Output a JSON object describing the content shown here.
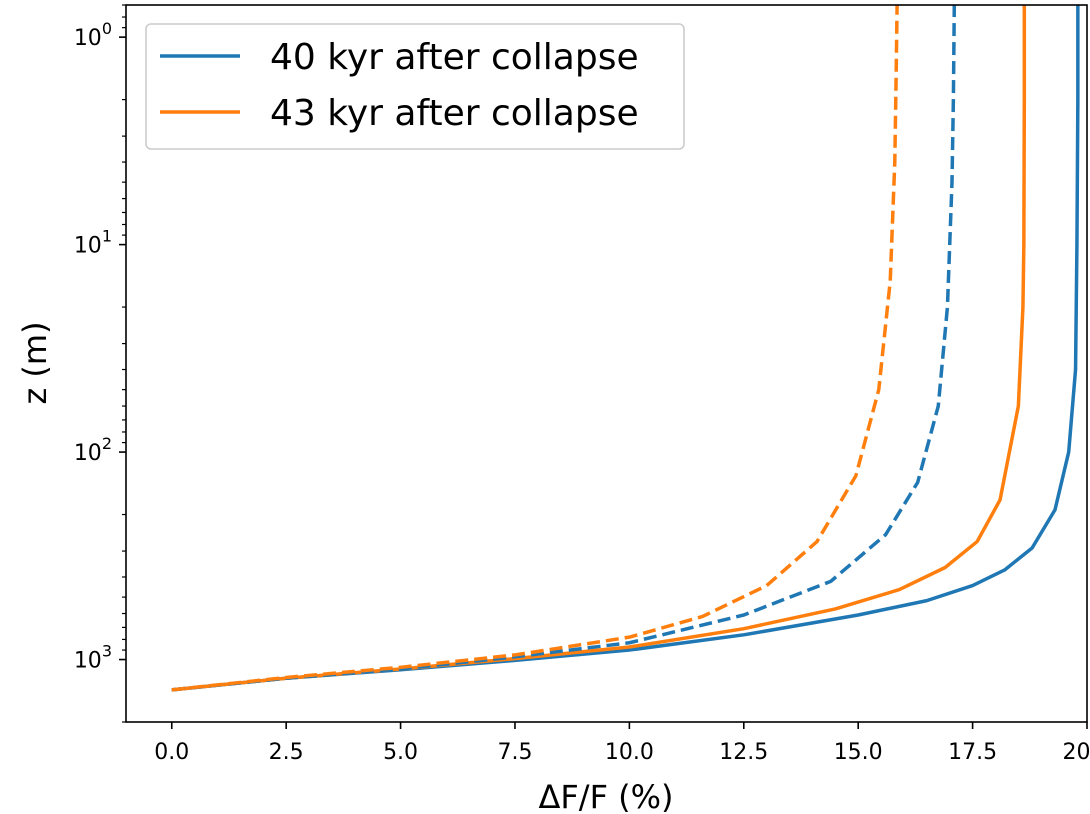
{
  "chart_data": {
    "type": "line",
    "xlabel": "ΔF/F (%)",
    "ylabel": "z (m)",
    "xlim": [
      -1.0,
      20.0
    ],
    "ylim": [
      2000,
      0.7
    ],
    "yscale": "log",
    "yaxis_inverted": true,
    "grid": false,
    "legend": {
      "placement": "top-left",
      "entries": [
        {
          "label": "40 kyr after collapse",
          "color": "#1f77b4",
          "linestyle": "solid"
        },
        {
          "label": "43 kyr after collapse",
          "color": "#ff7f0e",
          "linestyle": "solid"
        }
      ]
    },
    "x_ticks": [
      {
        "value": 0.0,
        "label": "0.0"
      },
      {
        "value": 2.5,
        "label": "2.5"
      },
      {
        "value": 5.0,
        "label": "5.0"
      },
      {
        "value": 7.5,
        "label": "7.5"
      },
      {
        "value": 10.0,
        "label": "10.0"
      },
      {
        "value": 12.5,
        "label": "12.5"
      },
      {
        "value": 15.0,
        "label": "15.0"
      },
      {
        "value": 17.5,
        "label": "17.5"
      },
      {
        "value": 20.0,
        "label": "20.0"
      }
    ],
    "y_ticks": [
      {
        "value": 1,
        "base": "10",
        "exp": "0"
      },
      {
        "value": 10,
        "base": "10",
        "exp": "1"
      },
      {
        "value": 100,
        "base": "10",
        "exp": "2"
      },
      {
        "value": 1000,
        "base": "10",
        "exp": "3"
      }
    ],
    "series": [
      {
        "color": "#1f77b4",
        "linestyle": "solid",
        "x": [
          0.0,
          2.5,
          5.0,
          7.5,
          10.0,
          12.5,
          15.0,
          16.5,
          17.5,
          18.2,
          18.8,
          19.3,
          19.6,
          19.75,
          19.78,
          19.8,
          19.8
        ],
        "y": [
          1400,
          1230,
          1120,
          1010,
          900,
          760,
          610,
          520,
          440,
          370,
          290,
          190,
          100,
          40,
          10,
          2,
          0.7
        ]
      },
      {
        "color": "#ff7f0e",
        "linestyle": "solid",
        "x": [
          0.0,
          2.5,
          5.0,
          7.5,
          10.0,
          12.5,
          14.5,
          15.9,
          16.9,
          17.6,
          18.1,
          18.5,
          18.6,
          18.62,
          18.63,
          18.63
        ],
        "y": [
          1400,
          1230,
          1110,
          990,
          870,
          710,
          570,
          460,
          360,
          270,
          170,
          60,
          20,
          10,
          2,
          0.7
        ]
      },
      {
        "color": "#1f77b4",
        "linestyle": "dashed",
        "x": [
          0.0,
          2.5,
          5.0,
          7.5,
          10.0,
          12.5,
          14.4,
          15.6,
          16.3,
          16.75,
          16.95,
          17.05,
          17.08,
          17.1
        ],
        "y": [
          1400,
          1230,
          1110,
          970,
          830,
          610,
          420,
          250,
          140,
          60,
          20,
          5,
          2,
          0.7
        ]
      },
      {
        "color": "#ff7f0e",
        "linestyle": "dashed",
        "x": [
          0.0,
          2.5,
          5.0,
          7.5,
          10.0,
          11.6,
          13.0,
          14.1,
          14.95,
          15.45,
          15.7,
          15.8,
          15.83,
          15.85
        ],
        "y": [
          1400,
          1220,
          1090,
          950,
          780,
          620,
          440,
          270,
          130,
          50,
          15,
          4,
          1.5,
          0.7
        ]
      }
    ]
  }
}
